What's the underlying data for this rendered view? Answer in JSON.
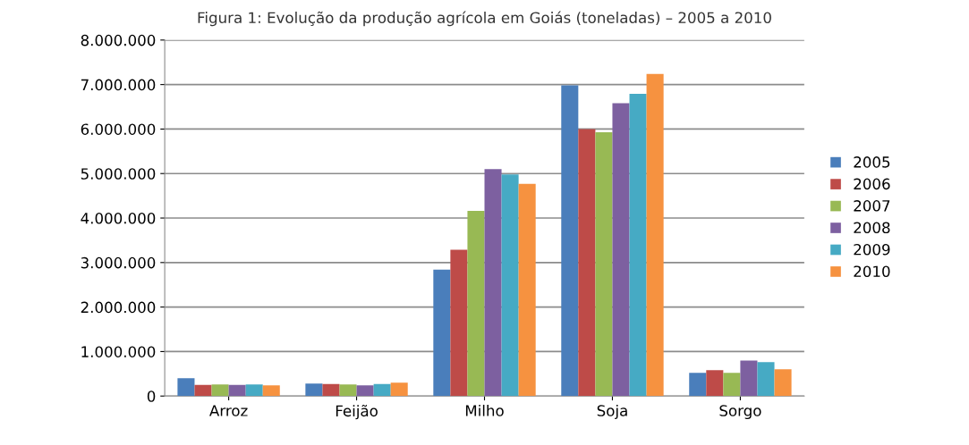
{
  "chart_data": {
    "type": "bar",
    "title": "Figura 1: Evolução da produção agrícola em Goiás (toneladas) – 2005 a 2010",
    "categories": [
      "Arroz",
      "Feijão",
      "Milho",
      "Soja",
      "Sorgo"
    ],
    "series": [
      {
        "name": "2005",
        "color": "#4a7ebb",
        "values": [
          400000,
          280000,
          2840000,
          6980000,
          520000
        ]
      },
      {
        "name": "2006",
        "color": "#be4b48",
        "values": [
          250000,
          270000,
          3290000,
          6000000,
          580000
        ]
      },
      {
        "name": "2007",
        "color": "#98b954",
        "values": [
          260000,
          260000,
          4160000,
          5930000,
          520000
        ]
      },
      {
        "name": "2008",
        "color": "#7d60a0",
        "values": [
          250000,
          240000,
          5100000,
          6580000,
          800000
        ]
      },
      {
        "name": "2009",
        "color": "#46aac4",
        "values": [
          260000,
          270000,
          4980000,
          6790000,
          760000
        ]
      },
      {
        "name": "2010",
        "color": "#f69240",
        "values": [
          240000,
          300000,
          4770000,
          7240000,
          600000
        ]
      }
    ],
    "ylim": [
      0,
      8000000
    ],
    "yticks": [
      {
        "value": 0,
        "label": "0"
      },
      {
        "value": 1000000,
        "label": "1.000.000"
      },
      {
        "value": 2000000,
        "label": "2.000.000"
      },
      {
        "value": 3000000,
        "label": "3.000.000"
      },
      {
        "value": 4000000,
        "label": "4.000.000"
      },
      {
        "value": 5000000,
        "label": "5.000.000"
      },
      {
        "value": 6000000,
        "label": "6.000.000"
      },
      {
        "value": 7000000,
        "label": "7.000.000"
      },
      {
        "value": 8000000,
        "label": "8.000.000"
      }
    ],
    "grid": "y",
    "legend": "right"
  }
}
